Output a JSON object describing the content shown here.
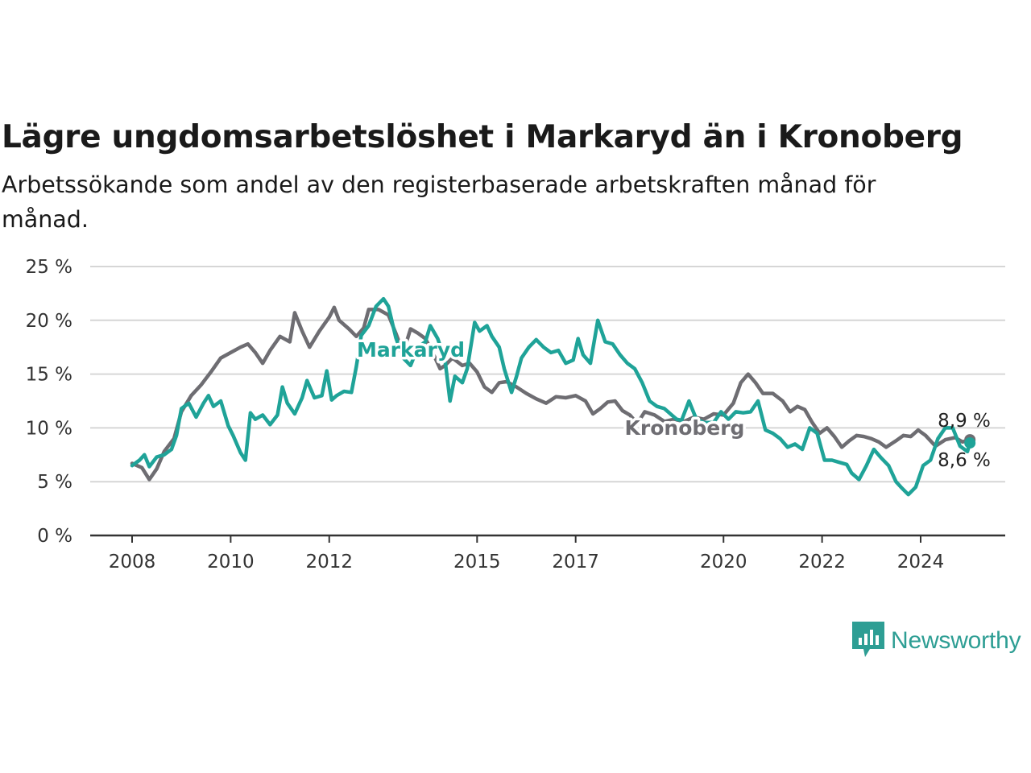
{
  "title": "Lägre ungdomsarbetslöshet i Markaryd än i Kronoberg",
  "subtitle": "Arbetssökande som andel av den registerbaserade arbetskraften månad för månad.",
  "brand": {
    "name": "Newsworthy",
    "icon": "newsworthy-logo-icon",
    "color": "#2e9e94"
  },
  "chart_data": {
    "type": "line",
    "title": "Lägre ungdomsarbetslöshet i Markaryd än i Kronoberg",
    "subtitle": "Arbetssökande som andel av den registerbaserade arbetskraften månad för månad.",
    "xlabel": "",
    "ylabel": "",
    "ylim": [
      0,
      25
    ],
    "xlim": [
      2008.0,
      2025.4
    ],
    "grid": true,
    "legend": "none",
    "y_ticks": [
      {
        "value": 0,
        "label": "0 %"
      },
      {
        "value": 5,
        "label": "5 %"
      },
      {
        "value": 10,
        "label": "10 %"
      },
      {
        "value": 15,
        "label": "15 %"
      },
      {
        "value": 20,
        "label": "20 %"
      },
      {
        "value": 25,
        "label": "25 %"
      }
    ],
    "x_ticks": [
      {
        "value": 2008,
        "label": "2008"
      },
      {
        "value": 2010,
        "label": "2010"
      },
      {
        "value": 2012,
        "label": "2012"
      },
      {
        "value": 2015,
        "label": "2015"
      },
      {
        "value": 2017,
        "label": "2017"
      },
      {
        "value": 2020,
        "label": "2020"
      },
      {
        "value": 2022,
        "label": "2022"
      },
      {
        "value": 2024,
        "label": "2024"
      }
    ],
    "series": [
      {
        "name": "Kronoberg",
        "color": "#6e6d72",
        "end_label": "8,9 %",
        "points": [
          [
            2008.0,
            6.7
          ],
          [
            2008.2,
            6.3
          ],
          [
            2008.35,
            5.2
          ],
          [
            2008.5,
            6.2
          ],
          [
            2008.65,
            7.8
          ],
          [
            2008.85,
            9.0
          ],
          [
            2009.0,
            11.5
          ],
          [
            2009.2,
            13.0
          ],
          [
            2009.4,
            14.0
          ],
          [
            2009.6,
            15.2
          ],
          [
            2009.8,
            16.5
          ],
          [
            2010.0,
            17.0
          ],
          [
            2010.2,
            17.5
          ],
          [
            2010.35,
            17.8
          ],
          [
            2010.5,
            17.0
          ],
          [
            2010.65,
            16.0
          ],
          [
            2010.8,
            17.2
          ],
          [
            2011.0,
            18.5
          ],
          [
            2011.2,
            18.0
          ],
          [
            2011.3,
            20.7
          ],
          [
            2011.45,
            19.0
          ],
          [
            2011.6,
            17.5
          ],
          [
            2011.8,
            19.0
          ],
          [
            2012.0,
            20.3
          ],
          [
            2012.1,
            21.2
          ],
          [
            2012.2,
            20.0
          ],
          [
            2012.4,
            19.2
          ],
          [
            2012.55,
            18.5
          ],
          [
            2012.7,
            19.3
          ],
          [
            2012.8,
            21.0
          ],
          [
            2013.0,
            21.0
          ],
          [
            2013.2,
            20.5
          ],
          [
            2013.35,
            18.8
          ],
          [
            2013.5,
            17.0
          ],
          [
            2013.65,
            19.2
          ],
          [
            2013.8,
            18.8
          ],
          [
            2013.95,
            18.3
          ],
          [
            2014.1,
            17.0
          ],
          [
            2014.25,
            15.5
          ],
          [
            2014.35,
            15.8
          ],
          [
            2014.5,
            16.5
          ],
          [
            2014.7,
            15.8
          ],
          [
            2014.85,
            16.0
          ],
          [
            2015.0,
            15.2
          ],
          [
            2015.15,
            13.8
          ],
          [
            2015.3,
            13.3
          ],
          [
            2015.45,
            14.2
          ],
          [
            2015.6,
            14.3
          ],
          [
            2015.8,
            13.8
          ],
          [
            2016.0,
            13.2
          ],
          [
            2016.2,
            12.7
          ],
          [
            2016.4,
            12.3
          ],
          [
            2016.6,
            12.9
          ],
          [
            2016.8,
            12.8
          ],
          [
            2017.0,
            13.0
          ],
          [
            2017.2,
            12.5
          ],
          [
            2017.35,
            11.3
          ],
          [
            2017.5,
            11.8
          ],
          [
            2017.65,
            12.4
          ],
          [
            2017.8,
            12.5
          ],
          [
            2017.95,
            11.6
          ],
          [
            2018.1,
            11.2
          ],
          [
            2018.25,
            10.4
          ],
          [
            2018.4,
            11.5
          ],
          [
            2018.6,
            11.2
          ],
          [
            2018.8,
            10.6
          ],
          [
            2019.0,
            10.8
          ],
          [
            2019.2,
            10.6
          ],
          [
            2019.4,
            11.0
          ],
          [
            2019.6,
            10.8
          ],
          [
            2019.8,
            11.3
          ],
          [
            2020.0,
            11.2
          ],
          [
            2020.2,
            12.3
          ],
          [
            2020.35,
            14.2
          ],
          [
            2020.5,
            15.0
          ],
          [
            2020.65,
            14.2
          ],
          [
            2020.8,
            13.2
          ],
          [
            2021.0,
            13.2
          ],
          [
            2021.2,
            12.5
          ],
          [
            2021.35,
            11.5
          ],
          [
            2021.5,
            12.0
          ],
          [
            2021.65,
            11.7
          ],
          [
            2021.8,
            10.5
          ],
          [
            2021.95,
            9.5
          ],
          [
            2022.1,
            10.0
          ],
          [
            2022.25,
            9.2
          ],
          [
            2022.4,
            8.2
          ],
          [
            2022.55,
            8.8
          ],
          [
            2022.7,
            9.3
          ],
          [
            2022.85,
            9.2
          ],
          [
            2023.0,
            9.0
          ],
          [
            2023.15,
            8.7
          ],
          [
            2023.3,
            8.2
          ],
          [
            2023.5,
            8.8
          ],
          [
            2023.65,
            9.3
          ],
          [
            2023.8,
            9.2
          ],
          [
            2023.95,
            9.8
          ],
          [
            2024.1,
            9.3
          ],
          [
            2024.3,
            8.3
          ],
          [
            2024.5,
            8.9
          ],
          [
            2024.7,
            9.1
          ],
          [
            2024.85,
            8.7
          ],
          [
            2025.0,
            8.9
          ]
        ]
      },
      {
        "name": "Markaryd",
        "color": "#1fa398",
        "end_label": "8,6 %",
        "points": [
          [
            2008.0,
            6.5
          ],
          [
            2008.15,
            7.0
          ],
          [
            2008.25,
            7.5
          ],
          [
            2008.35,
            6.4
          ],
          [
            2008.5,
            7.3
          ],
          [
            2008.65,
            7.5
          ],
          [
            2008.8,
            8.0
          ],
          [
            2008.9,
            9.3
          ],
          [
            2009.0,
            11.8
          ],
          [
            2009.15,
            12.3
          ],
          [
            2009.3,
            11.0
          ],
          [
            2009.45,
            12.3
          ],
          [
            2009.55,
            13.0
          ],
          [
            2009.65,
            12.0
          ],
          [
            2009.8,
            12.5
          ],
          [
            2009.95,
            10.2
          ],
          [
            2010.05,
            9.3
          ],
          [
            2010.2,
            7.7
          ],
          [
            2010.3,
            7.0
          ],
          [
            2010.4,
            11.4
          ],
          [
            2010.5,
            10.8
          ],
          [
            2010.65,
            11.2
          ],
          [
            2010.8,
            10.3
          ],
          [
            2010.95,
            11.2
          ],
          [
            2011.05,
            13.8
          ],
          [
            2011.15,
            12.3
          ],
          [
            2011.3,
            11.3
          ],
          [
            2011.45,
            12.8
          ],
          [
            2011.55,
            14.4
          ],
          [
            2011.7,
            12.8
          ],
          [
            2011.85,
            13.0
          ],
          [
            2011.95,
            15.3
          ],
          [
            2012.05,
            12.6
          ],
          [
            2012.15,
            13.0
          ],
          [
            2012.3,
            13.4
          ],
          [
            2012.45,
            13.3
          ],
          [
            2012.55,
            15.7
          ],
          [
            2012.65,
            18.6
          ],
          [
            2012.8,
            19.5
          ],
          [
            2012.95,
            21.3
          ],
          [
            2013.1,
            22.0
          ],
          [
            2013.2,
            21.3
          ],
          [
            2013.35,
            18.4
          ],
          [
            2013.5,
            16.5
          ],
          [
            2013.65,
            15.8
          ],
          [
            2013.8,
            17.5
          ],
          [
            2013.95,
            18.0
          ],
          [
            2014.05,
            19.5
          ],
          [
            2014.2,
            18.3
          ],
          [
            2014.35,
            16.3
          ],
          [
            2014.45,
            12.5
          ],
          [
            2014.55,
            14.8
          ],
          [
            2014.7,
            14.2
          ],
          [
            2014.8,
            15.5
          ],
          [
            2014.95,
            19.8
          ],
          [
            2015.05,
            19.0
          ],
          [
            2015.2,
            19.5
          ],
          [
            2015.3,
            18.5
          ],
          [
            2015.45,
            17.5
          ],
          [
            2015.55,
            15.5
          ],
          [
            2015.7,
            13.3
          ],
          [
            2015.8,
            14.8
          ],
          [
            2015.9,
            16.5
          ],
          [
            2016.05,
            17.5
          ],
          [
            2016.2,
            18.2
          ],
          [
            2016.35,
            17.5
          ],
          [
            2016.5,
            17.0
          ],
          [
            2016.65,
            17.2
          ],
          [
            2016.8,
            16.0
          ],
          [
            2016.95,
            16.3
          ],
          [
            2017.05,
            18.3
          ],
          [
            2017.15,
            16.8
          ],
          [
            2017.3,
            16.0
          ],
          [
            2017.45,
            20.0
          ],
          [
            2017.6,
            18.0
          ],
          [
            2017.75,
            17.8
          ],
          [
            2017.9,
            16.8
          ],
          [
            2018.05,
            16.0
          ],
          [
            2018.2,
            15.5
          ],
          [
            2018.35,
            14.2
          ],
          [
            2018.5,
            12.5
          ],
          [
            2018.65,
            12.0
          ],
          [
            2018.8,
            11.8
          ],
          [
            2018.95,
            11.2
          ],
          [
            2019.05,
            10.8
          ],
          [
            2019.15,
            10.7
          ],
          [
            2019.3,
            12.5
          ],
          [
            2019.45,
            10.8
          ],
          [
            2019.6,
            10.5
          ],
          [
            2019.8,
            10.5
          ],
          [
            2019.95,
            11.5
          ],
          [
            2020.1,
            10.8
          ],
          [
            2020.25,
            11.5
          ],
          [
            2020.4,
            11.4
          ],
          [
            2020.55,
            11.5
          ],
          [
            2020.7,
            12.5
          ],
          [
            2020.85,
            9.8
          ],
          [
            2021.0,
            9.5
          ],
          [
            2021.15,
            9.0
          ],
          [
            2021.3,
            8.2
          ],
          [
            2021.45,
            8.5
          ],
          [
            2021.6,
            8.0
          ],
          [
            2021.75,
            10.0
          ],
          [
            2021.9,
            9.5
          ],
          [
            2022.05,
            7.0
          ],
          [
            2022.2,
            7.0
          ],
          [
            2022.35,
            6.8
          ],
          [
            2022.5,
            6.6
          ],
          [
            2022.6,
            5.8
          ],
          [
            2022.75,
            5.2
          ],
          [
            2022.9,
            6.5
          ],
          [
            2023.05,
            8.0
          ],
          [
            2023.2,
            7.2
          ],
          [
            2023.35,
            6.5
          ],
          [
            2023.5,
            5.0
          ],
          [
            2023.6,
            4.5
          ],
          [
            2023.75,
            3.8
          ],
          [
            2023.9,
            4.5
          ],
          [
            2024.05,
            6.5
          ],
          [
            2024.2,
            7.0
          ],
          [
            2024.35,
            9.0
          ],
          [
            2024.5,
            10.0
          ],
          [
            2024.65,
            10.0
          ],
          [
            2024.8,
            8.3
          ],
          [
            2024.95,
            7.8
          ],
          [
            2025.0,
            8.6
          ]
        ]
      }
    ]
  }
}
